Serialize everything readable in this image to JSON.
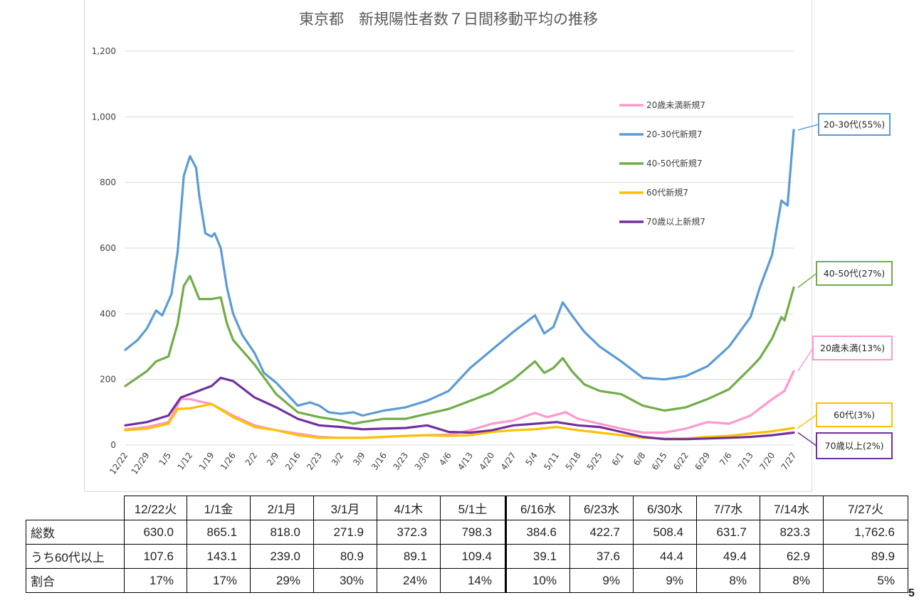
{
  "chart_data": {
    "type": "line",
    "title": "東京都　新規陽性者数７日間移動平均の推移",
    "ylim": [
      0,
      1200
    ],
    "yticks": [
      0,
      200,
      400,
      600,
      800,
      1000,
      1200
    ],
    "ytick_labels": [
      "0",
      "200",
      "400",
      "600",
      "800",
      "1,000",
      "1,200"
    ],
    "x_start": "2020-12-22",
    "x_end": "2021-07-27",
    "x_tick_labels": [
      "12/22",
      "12/29",
      "1/5",
      "1/12",
      "1/19",
      "1/26",
      "2/2",
      "2/9",
      "2/16",
      "2/23",
      "3/2",
      "3/9",
      "3/16",
      "3/23",
      "3/30",
      "4/6",
      "4/13",
      "4/20",
      "4/27",
      "5/4",
      "5/11",
      "5/18",
      "5/25",
      "6/1",
      "6/8",
      "6/15",
      "6/22",
      "6/29",
      "7/6",
      "7/13",
      "7/20",
      "7/27"
    ],
    "grid": "horizontal",
    "legend_position": "upper-right",
    "series": [
      {
        "name": "20歳未満新規7",
        "color": "#ff99cc",
        "callout": "20歳未満(13%)",
        "points": [
          [
            "2020-12-22",
            48
          ],
          [
            "2020-12-29",
            55
          ],
          [
            "2021-01-05",
            70
          ],
          [
            "2021-01-09",
            140
          ],
          [
            "2021-01-12",
            140
          ],
          [
            "2021-01-19",
            125
          ],
          [
            "2021-01-26",
            90
          ],
          [
            "2021-02-02",
            60
          ],
          [
            "2021-02-09",
            45
          ],
          [
            "2021-02-16",
            35
          ],
          [
            "2021-02-23",
            25
          ],
          [
            "2021-03-02",
            22
          ],
          [
            "2021-03-09",
            22
          ],
          [
            "2021-03-16",
            25
          ],
          [
            "2021-03-23",
            28
          ],
          [
            "2021-03-30",
            30
          ],
          [
            "2021-04-06",
            32
          ],
          [
            "2021-04-13",
            45
          ],
          [
            "2021-04-20",
            65
          ],
          [
            "2021-04-27",
            75
          ],
          [
            "2021-05-04",
            98
          ],
          [
            "2021-05-08",
            85
          ],
          [
            "2021-05-14",
            100
          ],
          [
            "2021-05-18",
            80
          ],
          [
            "2021-05-25",
            65
          ],
          [
            "2021-06-01",
            50
          ],
          [
            "2021-06-08",
            38
          ],
          [
            "2021-06-15",
            38
          ],
          [
            "2021-06-22",
            50
          ],
          [
            "2021-06-29",
            70
          ],
          [
            "2021-07-06",
            65
          ],
          [
            "2021-07-13",
            90
          ],
          [
            "2021-07-20",
            140
          ],
          [
            "2021-07-24",
            165
          ],
          [
            "2021-07-27",
            225
          ]
        ]
      },
      {
        "name": "20-30代新規7",
        "color": "#5b9bd5",
        "callout": "20-30代(55%)",
        "points": [
          [
            "2020-12-22",
            290
          ],
          [
            "2020-12-26",
            320
          ],
          [
            "2020-12-29",
            355
          ],
          [
            "2021-01-01",
            410
          ],
          [
            "2021-01-03",
            395
          ],
          [
            "2021-01-06",
            460
          ],
          [
            "2021-01-08",
            590
          ],
          [
            "2021-01-10",
            820
          ],
          [
            "2021-01-12",
            880
          ],
          [
            "2021-01-14",
            845
          ],
          [
            "2021-01-15",
            760
          ],
          [
            "2021-01-17",
            645
          ],
          [
            "2021-01-19",
            635
          ],
          [
            "2021-01-20",
            645
          ],
          [
            "2021-01-22",
            600
          ],
          [
            "2021-01-24",
            480
          ],
          [
            "2021-01-26",
            400
          ],
          [
            "2021-01-29",
            335
          ],
          [
            "2021-02-02",
            280
          ],
          [
            "2021-02-05",
            220
          ],
          [
            "2021-02-09",
            190
          ],
          [
            "2021-02-12",
            160
          ],
          [
            "2021-02-16",
            120
          ],
          [
            "2021-02-20",
            130
          ],
          [
            "2021-02-23",
            120
          ],
          [
            "2021-02-26",
            100
          ],
          [
            "2021-03-02",
            95
          ],
          [
            "2021-03-06",
            100
          ],
          [
            "2021-03-09",
            90
          ],
          [
            "2021-03-16",
            105
          ],
          [
            "2021-03-23",
            115
          ],
          [
            "2021-03-30",
            135
          ],
          [
            "2021-04-06",
            165
          ],
          [
            "2021-04-13",
            235
          ],
          [
            "2021-04-20",
            290
          ],
          [
            "2021-04-27",
            345
          ],
          [
            "2021-05-04",
            395
          ],
          [
            "2021-05-07",
            340
          ],
          [
            "2021-05-10",
            360
          ],
          [
            "2021-05-13",
            435
          ],
          [
            "2021-05-16",
            395
          ],
          [
            "2021-05-20",
            345
          ],
          [
            "2021-05-25",
            300
          ],
          [
            "2021-06-01",
            255
          ],
          [
            "2021-06-08",
            205
          ],
          [
            "2021-06-15",
            200
          ],
          [
            "2021-06-22",
            210
          ],
          [
            "2021-06-29",
            240
          ],
          [
            "2021-07-06",
            300
          ],
          [
            "2021-07-13",
            390
          ],
          [
            "2021-07-16",
            480
          ],
          [
            "2021-07-20",
            580
          ],
          [
            "2021-07-23",
            745
          ],
          [
            "2021-07-25",
            730
          ],
          [
            "2021-07-27",
            960
          ]
        ]
      },
      {
        "name": "40-50代新規7",
        "color": "#70ad47",
        "callout": "40-50代(27%)",
        "points": [
          [
            "2020-12-22",
            180
          ],
          [
            "2020-12-29",
            225
          ],
          [
            "2021-01-01",
            255
          ],
          [
            "2021-01-05",
            270
          ],
          [
            "2021-01-08",
            370
          ],
          [
            "2021-01-10",
            485
          ],
          [
            "2021-01-12",
            515
          ],
          [
            "2021-01-15",
            445
          ],
          [
            "2021-01-19",
            445
          ],
          [
            "2021-01-22",
            450
          ],
          [
            "2021-01-24",
            370
          ],
          [
            "2021-01-26",
            320
          ],
          [
            "2021-02-02",
            245
          ],
          [
            "2021-02-09",
            155
          ],
          [
            "2021-02-16",
            100
          ],
          [
            "2021-02-23",
            85
          ],
          [
            "2021-03-02",
            75
          ],
          [
            "2021-03-06",
            65
          ],
          [
            "2021-03-09",
            70
          ],
          [
            "2021-03-16",
            80
          ],
          [
            "2021-03-23",
            80
          ],
          [
            "2021-03-30",
            95
          ],
          [
            "2021-04-06",
            110
          ],
          [
            "2021-04-13",
            135
          ],
          [
            "2021-04-20",
            160
          ],
          [
            "2021-04-27",
            200
          ],
          [
            "2021-05-04",
            255
          ],
          [
            "2021-05-07",
            220
          ],
          [
            "2021-05-10",
            235
          ],
          [
            "2021-05-13",
            265
          ],
          [
            "2021-05-16",
            225
          ],
          [
            "2021-05-20",
            185
          ],
          [
            "2021-05-25",
            165
          ],
          [
            "2021-06-01",
            155
          ],
          [
            "2021-06-08",
            120
          ],
          [
            "2021-06-15",
            105
          ],
          [
            "2021-06-22",
            115
          ],
          [
            "2021-06-29",
            140
          ],
          [
            "2021-07-06",
            170
          ],
          [
            "2021-07-13",
            235
          ],
          [
            "2021-07-16",
            265
          ],
          [
            "2021-07-20",
            325
          ],
          [
            "2021-07-23",
            390
          ],
          [
            "2021-07-24",
            380
          ],
          [
            "2021-07-27",
            480
          ]
        ]
      },
      {
        "name": "60代新規7",
        "color": "#ffc000",
        "callout": "60代(3%)",
        "points": [
          [
            "2020-12-22",
            45
          ],
          [
            "2020-12-29",
            50
          ],
          [
            "2021-01-05",
            65
          ],
          [
            "2021-01-08",
            110
          ],
          [
            "2021-01-12",
            112
          ],
          [
            "2021-01-19",
            125
          ],
          [
            "2021-01-26",
            85
          ],
          [
            "2021-02-02",
            55
          ],
          [
            "2021-02-09",
            45
          ],
          [
            "2021-02-16",
            30
          ],
          [
            "2021-02-23",
            22
          ],
          [
            "2021-03-02",
            22
          ],
          [
            "2021-03-09",
            22
          ],
          [
            "2021-03-16",
            25
          ],
          [
            "2021-03-23",
            28
          ],
          [
            "2021-03-30",
            30
          ],
          [
            "2021-04-06",
            28
          ],
          [
            "2021-04-13",
            30
          ],
          [
            "2021-04-20",
            40
          ],
          [
            "2021-04-27",
            45
          ],
          [
            "2021-05-04",
            48
          ],
          [
            "2021-05-11",
            55
          ],
          [
            "2021-05-18",
            45
          ],
          [
            "2021-05-25",
            38
          ],
          [
            "2021-06-01",
            30
          ],
          [
            "2021-06-08",
            22
          ],
          [
            "2021-06-15",
            20
          ],
          [
            "2021-06-22",
            20
          ],
          [
            "2021-06-29",
            25
          ],
          [
            "2021-07-06",
            28
          ],
          [
            "2021-07-13",
            35
          ],
          [
            "2021-07-20",
            42
          ],
          [
            "2021-07-27",
            52
          ]
        ]
      },
      {
        "name": "70歳以上新規7",
        "color": "#7030a0",
        "callout": "70歳以上(2%)",
        "points": [
          [
            "2020-12-22",
            60
          ],
          [
            "2020-12-29",
            70
          ],
          [
            "2021-01-05",
            90
          ],
          [
            "2021-01-09",
            145
          ],
          [
            "2021-01-12",
            155
          ],
          [
            "2021-01-19",
            180
          ],
          [
            "2021-01-22",
            205
          ],
          [
            "2021-01-26",
            195
          ],
          [
            "2021-02-02",
            145
          ],
          [
            "2021-02-09",
            115
          ],
          [
            "2021-02-16",
            80
          ],
          [
            "2021-02-23",
            60
          ],
          [
            "2021-03-02",
            55
          ],
          [
            "2021-03-09",
            48
          ],
          [
            "2021-03-16",
            50
          ],
          [
            "2021-03-23",
            52
          ],
          [
            "2021-03-30",
            60
          ],
          [
            "2021-04-06",
            40
          ],
          [
            "2021-04-13",
            38
          ],
          [
            "2021-04-20",
            45
          ],
          [
            "2021-04-27",
            60
          ],
          [
            "2021-05-04",
            65
          ],
          [
            "2021-05-11",
            70
          ],
          [
            "2021-05-18",
            60
          ],
          [
            "2021-05-25",
            55
          ],
          [
            "2021-06-01",
            40
          ],
          [
            "2021-06-08",
            25
          ],
          [
            "2021-06-15",
            18
          ],
          [
            "2021-06-22",
            18
          ],
          [
            "2021-06-29",
            20
          ],
          [
            "2021-07-06",
            22
          ],
          [
            "2021-07-13",
            25
          ],
          [
            "2021-07-20",
            30
          ],
          [
            "2021-07-27",
            38
          ]
        ]
      }
    ]
  },
  "table": {
    "headers": [
      "12/22火",
      "1/1金",
      "2/1月",
      "3/1月",
      "4/1木",
      "5/1土",
      "6/16水",
      "6/23水",
      "6/30水",
      "7/7水",
      "7/14水",
      "7/27火"
    ],
    "rows": [
      {
        "label": "総数",
        "values": [
          "630.0",
          "865.1",
          "818.0",
          "271.9",
          "372.3",
          "798.3",
          "384.6",
          "422.7",
          "508.4",
          "631.7",
          "823.3",
          "1,762.6"
        ]
      },
      {
        "label": "うち60代以上",
        "values": [
          "107.6",
          "143.1",
          "239.0",
          "80.9",
          "89.1",
          "109.4",
          "39.1",
          "37.6",
          "44.4",
          "49.4",
          "62.9",
          "89.9"
        ]
      },
      {
        "label": "割合",
        "values": [
          "17%",
          "17%",
          "29%",
          "30%",
          "24%",
          "14%",
          "10%",
          "9%",
          "9%",
          "8%",
          "8%",
          "5%"
        ]
      }
    ]
  },
  "page_number": "5"
}
